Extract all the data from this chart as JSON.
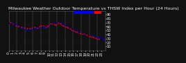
{
  "title": "Milwaukee Weather Outdoor Temperature vs THSW Index per Hour (24 Hours)",
  "bg_color": "#111111",
  "plot_bg_color": "#111111",
  "border_color": "#555555",
  "legend_blue_color": "#0000ff",
  "legend_red_color": "#ff0000",
  "grid_color": "#888888",
  "grid_style": "--",
  "ylim": [
    0,
    100
  ],
  "xlim": [
    0,
    24
  ],
  "y_ticks": [
    10,
    20,
    30,
    40,
    50,
    60,
    70,
    80,
    90
  ],
  "y_tick_labels": [
    "10",
    "20",
    "30",
    "40",
    "50",
    "60",
    "70",
    "80",
    "90"
  ],
  "x_tick_labels": [
    "1",
    "3",
    "5",
    "7",
    "9",
    "1",
    "3",
    "5",
    "7",
    "9",
    "1",
    "3"
  ],
  "title_color": "#ffffff",
  "tick_color": "#ffffff",
  "title_fontsize": 4.5,
  "tick_fontsize": 3.5,
  "scatter_size": 2,
  "blue_x": [
    0.3,
    0.7,
    1.2,
    1.6,
    2.1,
    2.5,
    3.0,
    3.4,
    3.8,
    4.2,
    4.7,
    5.1,
    5.6,
    5.9,
    6.3,
    6.8,
    7.0,
    7.5,
    7.9,
    8.3,
    8.7,
    9.1,
    9.5,
    9.9,
    10.2,
    10.6,
    11.0,
    11.4,
    11.8,
    12.1,
    12.5,
    12.9,
    13.3,
    13.7,
    14.1,
    14.5,
    14.9,
    15.3,
    15.7,
    16.1,
    16.5,
    16.9,
    17.3,
    17.7,
    18.1,
    18.5,
    18.9,
    19.3,
    19.7,
    20.1,
    20.5,
    20.9,
    21.3,
    21.7,
    22.1,
    22.5,
    22.9,
    23.3,
    23.7
  ],
  "blue_y": [
    68,
    70,
    65,
    67,
    62,
    60,
    58,
    57,
    55,
    53,
    50,
    52,
    54,
    55,
    55,
    57,
    55,
    58,
    60,
    61,
    58,
    57,
    60,
    63,
    65,
    67,
    68,
    69,
    68,
    70,
    72,
    70,
    68,
    65,
    63,
    61,
    58,
    56,
    54,
    52,
    50,
    49,
    47,
    45,
    44,
    43,
    42,
    40,
    39,
    38,
    37,
    36,
    35,
    34,
    33,
    32,
    31,
    30,
    29
  ],
  "red_x": [
    0.5,
    1.0,
    1.8,
    2.3,
    3.2,
    3.9,
    4.5,
    5.3,
    5.8,
    6.5,
    7.2,
    7.7,
    8.1,
    8.6,
    9.0,
    9.4,
    9.8,
    10.1,
    10.5,
    10.9,
    11.3,
    11.7,
    12.0,
    12.4,
    12.8,
    13.2,
    13.6,
    14.0,
    14.4,
    14.8,
    15.2,
    15.6,
    16.0,
    16.4,
    16.8,
    17.2,
    17.6,
    18.0,
    18.4,
    18.8,
    19.2,
    19.6,
    20.0,
    20.4,
    20.8,
    21.2,
    21.6,
    22.0,
    22.4
  ],
  "red_y": [
    72,
    68,
    63,
    61,
    59,
    57,
    55,
    56,
    58,
    59,
    58,
    60,
    62,
    63,
    61,
    59,
    62,
    65,
    67,
    68,
    66,
    65,
    68,
    70,
    68,
    65,
    63,
    61,
    59,
    57,
    55,
    53,
    51,
    49,
    47,
    46,
    44,
    43,
    42,
    41,
    40,
    38,
    37,
    35,
    34,
    33,
    31,
    30,
    29
  ],
  "black_x": [
    0.1,
    0.8,
    1.4,
    2.7,
    3.6,
    4.9,
    6.1,
    7.3,
    8.4,
    9.2,
    10.3,
    11.1,
    11.9,
    12.6,
    13.4,
    14.2,
    15.0,
    15.8,
    16.6,
    17.4,
    18.2,
    19.0,
    19.8,
    20.6,
    21.4,
    22.2,
    23.0
  ],
  "black_y": [
    69,
    67,
    64,
    59,
    56,
    53,
    56,
    59,
    61,
    60,
    64,
    67,
    69,
    71,
    66,
    62,
    57,
    54,
    50,
    46,
    44,
    41,
    39,
    37,
    35,
    32,
    30
  ],
  "grid_x_positions": [
    0,
    2,
    4,
    6,
    8,
    10,
    12,
    14,
    16,
    18,
    20,
    22,
    24
  ]
}
